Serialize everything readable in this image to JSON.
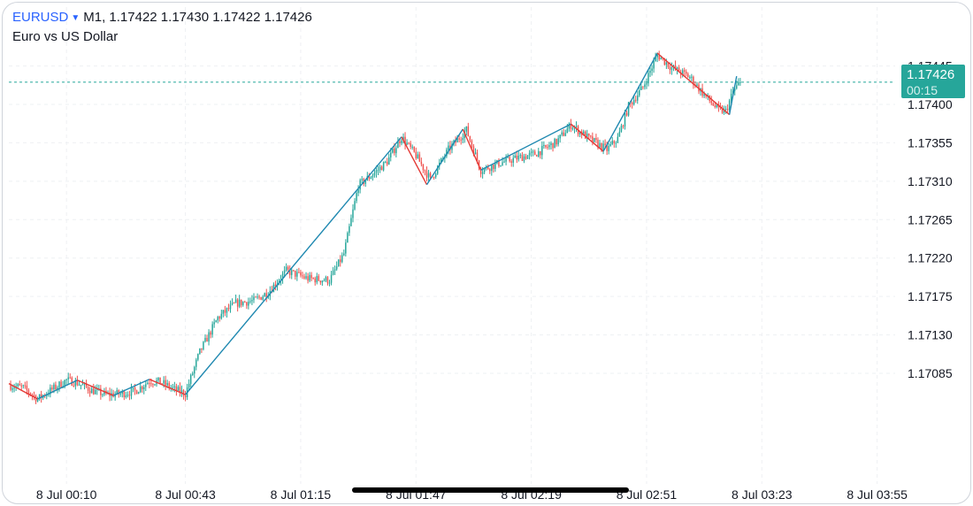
{
  "header": {
    "symbol": "EURUSD",
    "dropdown_caret": "▼",
    "ohlc_line": "M1, 1.17422 1.17430 1.17422 1.17426",
    "description": "Euro vs US Dollar"
  },
  "price_badge": {
    "price": "1.17426",
    "countdown": "00:15"
  },
  "colors": {
    "up": "#26a69a",
    "down": "#ef5350",
    "zigzag_up": "#1e88b0",
    "zigzag_down": "#e53935",
    "grid": "#eef0f3",
    "current_line": "#26a69a"
  },
  "chart_data": {
    "type": "candlestick",
    "title": "",
    "symbol": "EURUSD",
    "timeframe": "M1",
    "ylim": [
      1.1704,
      1.1748
    ],
    "y_ticks": [
      "1.17445",
      "1.17400",
      "1.17355",
      "1.17310",
      "1.17265",
      "1.17220",
      "1.17175",
      "1.17130",
      "1.17085"
    ],
    "x_ticks": [
      "8 Jul 00:10",
      "8 Jul 00:43",
      "8 Jul 01:15",
      "8 Jul 01:47",
      "8 Jul 02:19",
      "8 Jul 02:51",
      "8 Jul 03:23",
      "8 Jul 03:55"
    ],
    "x_tick_minutes": [
      10,
      43,
      75,
      107,
      139,
      171,
      203,
      235
    ],
    "x_range_minutes": [
      -6,
      240
    ],
    "current_price": 1.17426,
    "grid": true,
    "price_path": [
      [
        -6,
        1.17071
      ],
      [
        -2,
        1.17068
      ],
      [
        2,
        1.17055
      ],
      [
        6,
        1.17066
      ],
      [
        10,
        1.17077
      ],
      [
        13,
        1.17074
      ],
      [
        17,
        1.17065
      ],
      [
        21,
        1.1706
      ],
      [
        25,
        1.17061
      ],
      [
        29,
        1.17064
      ],
      [
        33,
        1.17076
      ],
      [
        36,
        1.17075
      ],
      [
        40,
        1.17066
      ],
      [
        43,
        1.17061
      ],
      [
        47,
        1.1711
      ],
      [
        52,
        1.1715
      ],
      [
        57,
        1.17167
      ],
      [
        62,
        1.1717
      ],
      [
        66,
        1.1718
      ],
      [
        71,
        1.17205
      ],
      [
        77,
        1.17196
      ],
      [
        83,
        1.17194
      ],
      [
        87,
        1.17225
      ],
      [
        91,
        1.17305
      ],
      [
        95,
        1.17318
      ],
      [
        99,
        1.17333
      ],
      [
        103,
        1.17362
      ],
      [
        107,
        1.1734
      ],
      [
        111,
        1.17312
      ],
      [
        116,
        1.17347
      ],
      [
        121,
        1.1737
      ],
      [
        125,
        1.17323
      ],
      [
        130,
        1.17331
      ],
      [
        135,
        1.17337
      ],
      [
        140,
        1.17342
      ],
      [
        146,
        1.17356
      ],
      [
        150,
        1.17376
      ],
      [
        155,
        1.1736
      ],
      [
        160,
        1.17347
      ],
      [
        163,
        1.1736
      ],
      [
        166,
        1.17398
      ],
      [
        170,
        1.1742
      ],
      [
        174,
        1.17458
      ],
      [
        178,
        1.17443
      ],
      [
        183,
        1.17432
      ],
      [
        187,
        1.17411
      ],
      [
        191,
        1.17393
      ],
      [
        193,
        1.17392
      ],
      [
        195,
        1.17415
      ],
      [
        197,
        1.17426
      ]
    ],
    "zigzag": [
      [
        -6,
        1.17073
      ],
      [
        2,
        1.17055
      ],
      [
        13,
        1.17077
      ],
      [
        23,
        1.17059
      ],
      [
        33,
        1.17078
      ],
      [
        43,
        1.1706
      ],
      [
        103,
        1.17362
      ],
      [
        110,
        1.17306
      ],
      [
        120,
        1.17371
      ],
      [
        125,
        1.17323
      ],
      [
        150,
        1.17377
      ],
      [
        159,
        1.17345
      ],
      [
        174,
        1.1746
      ],
      [
        194,
        1.17388
      ],
      [
        196,
        1.17433
      ]
    ]
  }
}
